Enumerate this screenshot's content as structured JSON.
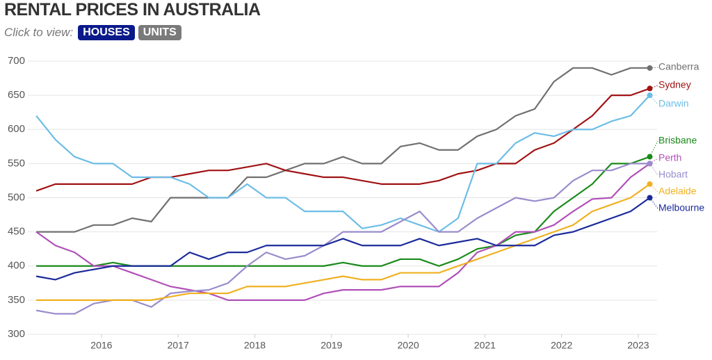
{
  "controls": {
    "prompt": "Click to view:",
    "buttons": [
      "HOUSES",
      "UNITS"
    ]
  },
  "chart_data": {
    "type": "line",
    "title": "RENTAL PRICES IN AUSTRALIA",
    "x": [
      2015.15,
      2015.4,
      2015.65,
      2015.9,
      2016.15,
      2016.4,
      2016.65,
      2016.9,
      2017.15,
      2017.4,
      2017.65,
      2017.9,
      2018.15,
      2018.4,
      2018.65,
      2018.9,
      2019.15,
      2019.4,
      2019.65,
      2019.9,
      2020.15,
      2020.4,
      2020.65,
      2020.9,
      2021.15,
      2021.4,
      2021.65,
      2021.9,
      2022.15,
      2022.4,
      2022.65,
      2022.9,
      2023.15
    ],
    "xlim": [
      2015.04,
      2023.245
    ],
    "xticks": [
      2016,
      2017,
      2018,
      2019,
      2020,
      2021,
      2022,
      2023
    ],
    "ylim": [
      300,
      700
    ],
    "yticks": [
      300,
      350,
      400,
      450,
      500,
      550,
      600,
      650,
      700
    ],
    "grid": true,
    "series": [
      {
        "name": "Canberra",
        "color": "#707070",
        "values": [
          450,
          450,
          450,
          460,
          460,
          470,
          465,
          500,
          500,
          500,
          500,
          530,
          530,
          540,
          550,
          550,
          560,
          550,
          550,
          575,
          580,
          570,
          570,
          590,
          600,
          620,
          630,
          670,
          690,
          690,
          680,
          690,
          690
        ]
      },
      {
        "name": "Sydney",
        "color": "#a01212",
        "values": [
          510,
          520,
          520,
          520,
          520,
          520,
          530,
          530,
          535,
          540,
          540,
          545,
          550,
          540,
          535,
          530,
          530,
          525,
          520,
          520,
          520,
          525,
          535,
          540,
          550,
          550,
          570,
          580,
          600,
          620,
          650,
          650,
          660
        ]
      },
      {
        "name": "Darwin",
        "color": "#6cbde6",
        "values": [
          620,
          585,
          560,
          550,
          550,
          530,
          530,
          530,
          520,
          500,
          500,
          520,
          500,
          500,
          480,
          480,
          480,
          455,
          460,
          470,
          460,
          450,
          470,
          550,
          550,
          580,
          595,
          590,
          600,
          600,
          612,
          620,
          650
        ]
      },
      {
        "name": "Brisbane",
        "color": "#1a8a1a",
        "values": [
          400,
          400,
          400,
          400,
          405,
          400,
          400,
          400,
          400,
          400,
          400,
          400,
          400,
          400,
          400,
          400,
          405,
          400,
          400,
          410,
          410,
          400,
          410,
          425,
          430,
          445,
          450,
          480,
          500,
          520,
          550,
          550,
          560
        ]
      },
      {
        "name": "Perth",
        "color": "#b050b8",
        "values": [
          450,
          430,
          420,
          400,
          400,
          390,
          380,
          370,
          365,
          360,
          350,
          350,
          350,
          350,
          350,
          360,
          365,
          365,
          365,
          370,
          370,
          370,
          390,
          420,
          430,
          450,
          450,
          460,
          480,
          498,
          500,
          530,
          550
        ]
      },
      {
        "name": "Hobart",
        "color": "#9a8ccc",
        "values": [
          335,
          330,
          330,
          345,
          350,
          350,
          340,
          360,
          363,
          365,
          375,
          400,
          420,
          410,
          415,
          430,
          450,
          450,
          450,
          465,
          480,
          450,
          450,
          470,
          485,
          500,
          495,
          500,
          525,
          540,
          540,
          550,
          550
        ]
      },
      {
        "name": "Adelaide",
        "color": "#f0b020",
        "values": [
          350,
          350,
          350,
          350,
          350,
          350,
          350,
          355,
          360,
          360,
          360,
          370,
          370,
          370,
          375,
          380,
          385,
          380,
          380,
          390,
          390,
          390,
          400,
          410,
          420,
          430,
          440,
          450,
          460,
          480,
          490,
          500,
          520
        ]
      },
      {
        "name": "Melbourne",
        "color": "#1a2a9a",
        "values": [
          385,
          380,
          390,
          395,
          400,
          400,
          400,
          400,
          420,
          410,
          420,
          420,
          430,
          430,
          430,
          430,
          440,
          430,
          430,
          430,
          440,
          430,
          435,
          440,
          430,
          430,
          430,
          445,
          450,
          460,
          470,
          480,
          500
        ]
      }
    ]
  }
}
